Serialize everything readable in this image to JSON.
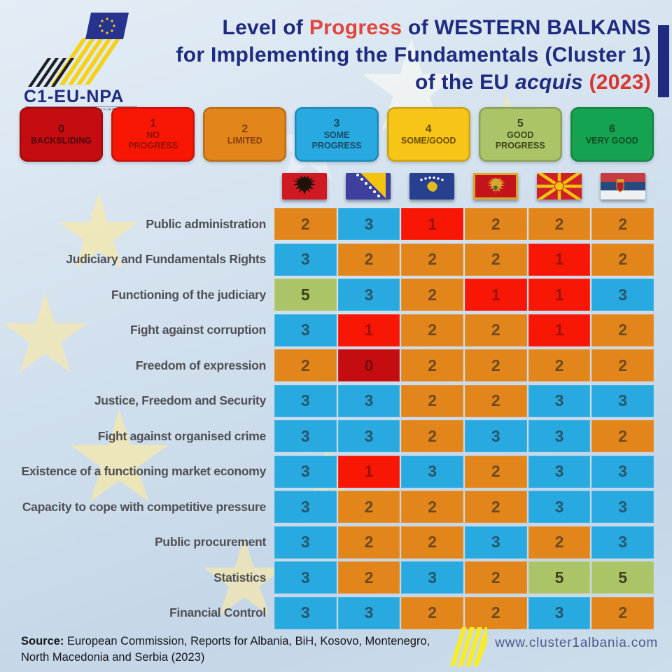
{
  "logo": {
    "name": "C1-EU-NPA",
    "caption": "CLUSTER ONE EU NEGOTIATION PLATFORM - ALBANIA"
  },
  "title": {
    "l1a": "Level of ",
    "l1b": "Progress",
    "l1c": " of WESTERN BALKANS",
    "l2": "for Implementing the Fundamentals (Cluster 1)",
    "l3a": "of the EU ",
    "l3b": "acquis",
    "l3c": " (2023)"
  },
  "legend": [
    {
      "value": "0",
      "label": "BACKSLIDING",
      "bg": "#c50d11",
      "text": "#4d0707"
    },
    {
      "value": "1",
      "label": "NO\nPROGRESS",
      "bg": "#f81605",
      "text": "#8f1004"
    },
    {
      "value": "2",
      "label": "LIMITED",
      "bg": "#e2851b",
      "text": "#86400c"
    },
    {
      "value": "3",
      "label": "SOME\nPROGRESS",
      "bg": "#28a9e0",
      "text": "#1b4a63"
    },
    {
      "value": "4",
      "label": "SOME/GOOD",
      "bg": "#f7c517",
      "text": "#6b4d05"
    },
    {
      "value": "5",
      "label": "GOOD\nPROGRESS",
      "bg": "#abc468",
      "text": "#3c431c"
    },
    {
      "value": "6",
      "label": "VERY GOOD",
      "bg": "#16a351",
      "text": "#0d4a26"
    }
  ],
  "score_colors": {
    "0": {
      "bg": "#c50d11",
      "text": "#7a0b08"
    },
    "1": {
      "bg": "#f81605",
      "text": "#9e1205"
    },
    "2": {
      "bg": "#e2851b",
      "text": "#6e4a22"
    },
    "3": {
      "bg": "#28a9e0",
      "text": "#28566b"
    },
    "4": {
      "bg": "#f7c517",
      "text": "#6b4d05"
    },
    "5": {
      "bg": "#abc468",
      "text": "#3c431c"
    },
    "6": {
      "bg": "#16a351",
      "text": "#0d4a26"
    }
  },
  "chart_data": {
    "type": "heatmap",
    "title": "Level of Progress of WESTERN BALKANS for Implementing the Fundamentals (Cluster 1) of the EU acquis (2023)",
    "columns": [
      "Albania",
      "Bosnia and Herzegovina",
      "Kosovo",
      "Montenegro",
      "North Macedonia",
      "Serbia"
    ],
    "rows": [
      "Public administration",
      "Judiciary and Fundamentals Rights",
      "Functioning of the judiciary",
      "Fight against corruption",
      "Freedom of expression",
      "Justice, Freedom and Security",
      "Fight against organised crime",
      "Existence of a functioning market economy",
      "Capacity to cope with competitive pressure",
      "Public procurement",
      "Statistics",
      "Financial Control"
    ],
    "values": [
      [
        2,
        3,
        1,
        2,
        2,
        2
      ],
      [
        3,
        2,
        2,
        2,
        1,
        2
      ],
      [
        5,
        3,
        2,
        1,
        1,
        3
      ],
      [
        3,
        1,
        2,
        2,
        1,
        2
      ],
      [
        2,
        0,
        2,
        2,
        2,
        2
      ],
      [
        3,
        3,
        2,
        2,
        3,
        3
      ],
      [
        3,
        3,
        2,
        3,
        3,
        2
      ],
      [
        3,
        1,
        3,
        2,
        3,
        3
      ],
      [
        3,
        2,
        2,
        2,
        3,
        3
      ],
      [
        3,
        2,
        2,
        3,
        2,
        3
      ],
      [
        3,
        2,
        3,
        2,
        5,
        5
      ],
      [
        3,
        3,
        2,
        2,
        3,
        2
      ]
    ],
    "value_range": [
      0,
      6
    ],
    "scale_labels": {
      "0": "BACKSLIDING",
      "1": "NO PROGRESS",
      "2": "LIMITED",
      "3": "SOME PROGRESS",
      "4": "SOME/GOOD",
      "5": "GOOD PROGRESS",
      "6": "VERY GOOD"
    },
    "legend_position": "top"
  },
  "footer": {
    "source_label": "Source:",
    "source_text": " European Commission, Reports for Albania, BiH, Kosovo, Montenegro, North Macedonia and Serbia (2023)",
    "website": "www.cluster1albania.com"
  }
}
